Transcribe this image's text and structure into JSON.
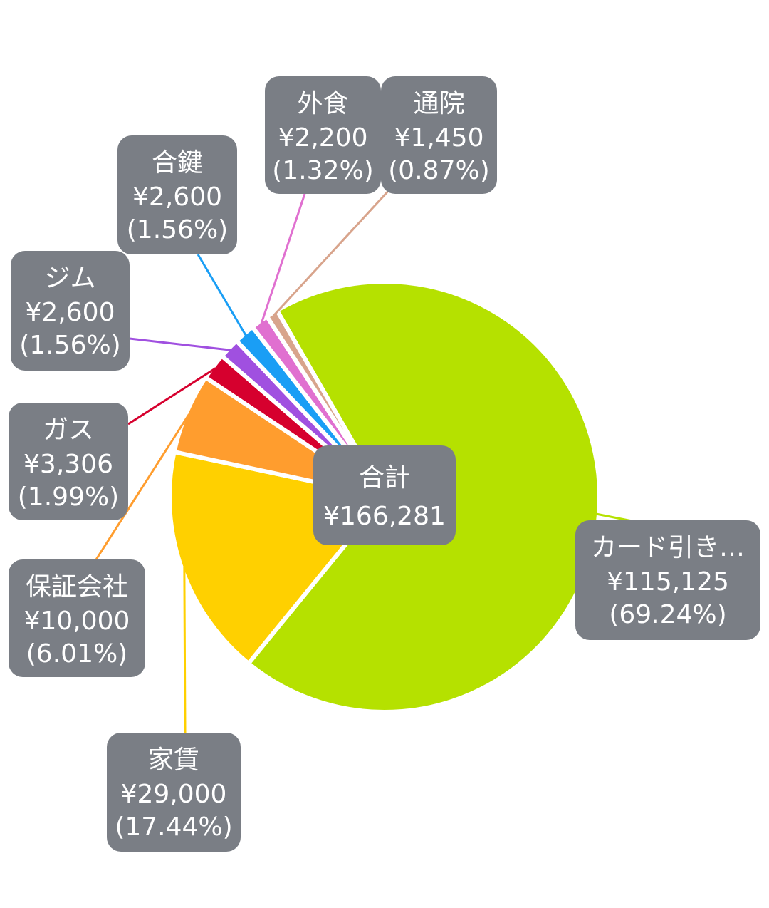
{
  "chart_data": {
    "type": "pie",
    "categories": [
      "カード引き…",
      "家賃",
      "保証会社",
      "ガス",
      "ジム",
      "合鍵",
      "外食",
      "通院"
    ],
    "values": [
      115125,
      29000,
      10000,
      3306,
      2600,
      2600,
      2200,
      1450
    ],
    "value_labels": [
      "¥115,125",
      "¥29,000",
      "¥10,000",
      "¥3,306",
      "¥2,600",
      "¥2,600",
      "¥2,200",
      "¥1,450"
    ],
    "percent_labels": [
      "(69.24%)",
      "(17.44%)",
      "(6.01%)",
      "(1.99%)",
      "(1.56%)",
      "(1.56%)",
      "(1.32%)",
      "(0.87%)"
    ],
    "colors": [
      "#b5e100",
      "#ffd000",
      "#ff9d2e",
      "#d6002e",
      "#a050e0",
      "#1a9ef5",
      "#e070d0",
      "#d8a48c"
    ],
    "total_label": "合計",
    "total": 166281,
    "total_value_label": "¥166,281"
  }
}
